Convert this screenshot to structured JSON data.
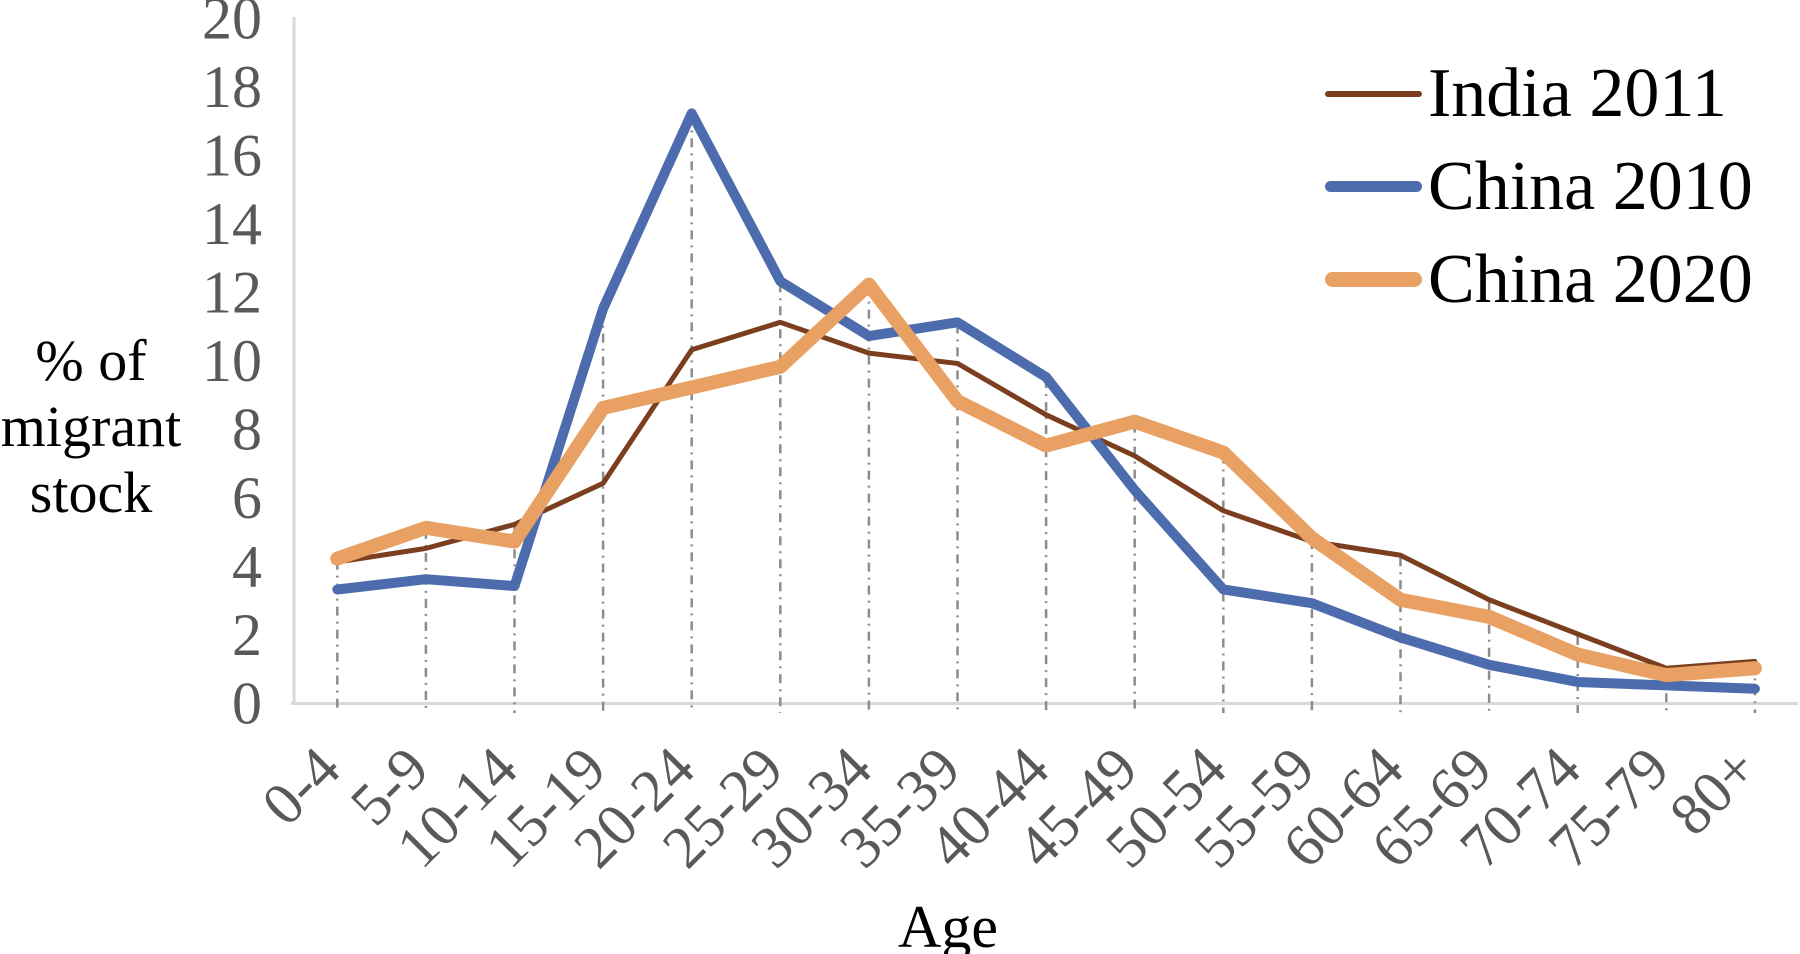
{
  "chart_data": {
    "type": "line",
    "title": "",
    "xlabel": "Age",
    "ylabel": "% of migrant stock",
    "ylabel_lines": [
      "% of",
      "migrant",
      "stock"
    ],
    "categories": [
      "0-4",
      "5-9",
      "10-14",
      "15-19",
      "20-24",
      "25-29",
      "30-34",
      "35-39",
      "40-44",
      "45-49",
      "50-54",
      "55-59",
      "60-64",
      "65-69",
      "70-74",
      "75-79",
      "80+"
    ],
    "yticks": [
      0,
      2,
      4,
      6,
      8,
      10,
      12,
      14,
      16,
      18,
      20
    ],
    "ylim": [
      0,
      20
    ],
    "grid": "vertical dash-dot drop lines at each category",
    "legend_position": "top-right",
    "series": [
      {
        "name": "India 2011",
        "color": "#7B3F20",
        "stroke_width": 5,
        "swatch_height": 6,
        "values": [
          4.1,
          4.5,
          5.2,
          6.4,
          10.3,
          11.1,
          10.2,
          9.9,
          8.4,
          7.2,
          5.6,
          4.7,
          4.3,
          3.0,
          2.0,
          1.0,
          1.2
        ]
      },
      {
        "name": "China 2010",
        "color": "#4D6CAD",
        "stroke_width": 10,
        "swatch_height": 11,
        "values": [
          3.3,
          3.6,
          3.4,
          11.5,
          17.2,
          12.3,
          10.7,
          11.1,
          9.5,
          6.2,
          3.3,
          2.9,
          1.9,
          1.1,
          0.6,
          0.5,
          0.4
        ]
      },
      {
        "name": "China 2020",
        "color": "#E9A063",
        "stroke_width": 14,
        "swatch_height": 15,
        "values": [
          4.2,
          5.1,
          4.7,
          8.6,
          9.2,
          9.8,
          12.2,
          8.8,
          7.5,
          8.2,
          7.3,
          4.8,
          3.0,
          2.5,
          1.4,
          0.8,
          1.0
        ]
      }
    ],
    "colors": {
      "axis_line": "#D9D9D9",
      "drop_line": "#8C8C8C",
      "tick_text": "#595959",
      "label_text": "#000000"
    }
  }
}
